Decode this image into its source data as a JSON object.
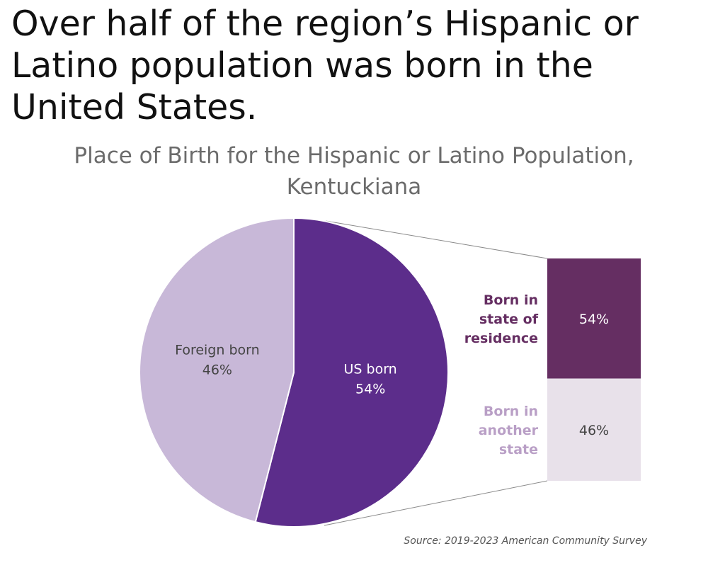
{
  "headline": "Over half of the region’s Hispanic or Latino population was born in the United States.",
  "colors": {
    "us_born": "#5c2d8b",
    "foreign_born": "#c8b8d8",
    "born_in_state": "#652e62",
    "born_another_state": "#e8e1ea",
    "label_in_state": "#652e62",
    "label_another_state": "#b99fc6"
  },
  "chart_data": {
    "type": "pie",
    "title": "Place of Birth for the Hispanic or Latino Population, Kentuckiana",
    "slices": [
      {
        "label": "US born",
        "value": 54,
        "value_label": "54%"
      },
      {
        "label": "Foreign born",
        "value": 46,
        "value_label": "46%"
      }
    ],
    "breakdown": {
      "of": "US born",
      "type": "stacked-bar",
      "segments": [
        {
          "label_lines": [
            "Born in",
            "state of",
            "residence"
          ],
          "value": 54,
          "value_label": "54%"
        },
        {
          "label_lines": [
            "Born in",
            "another",
            "state"
          ],
          "value": 46,
          "value_label": "46%"
        }
      ]
    }
  },
  "source": "Source: 2019-2023 American Community Survey"
}
